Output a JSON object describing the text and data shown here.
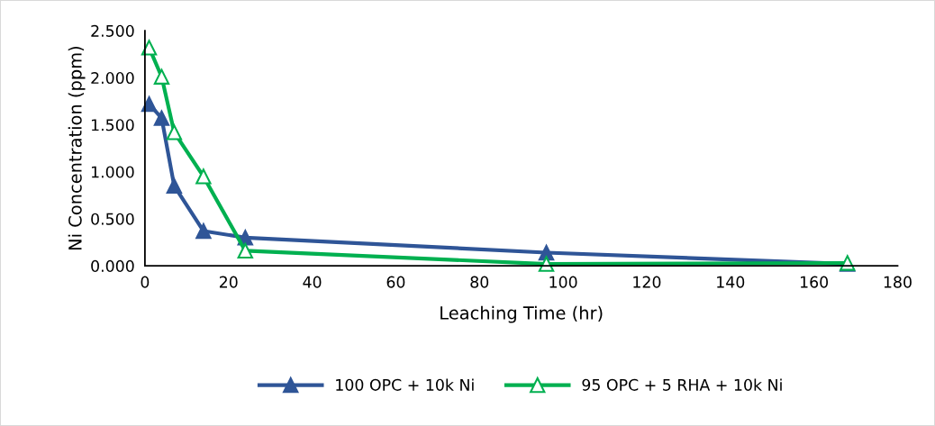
{
  "chart_data": {
    "type": "line",
    "xlabel": "Leaching Time (hr)",
    "ylabel": "Ni Concentration (ppm)",
    "xlim": [
      0,
      180
    ],
    "xticks": [
      0,
      20,
      40,
      60,
      80,
      100,
      120,
      140,
      160,
      180
    ],
    "ylim": [
      0,
      2.5
    ],
    "yticks": [
      {
        "value": 0,
        "label": "0.000"
      },
      {
        "value": 0.5,
        "label": "0.500"
      },
      {
        "value": 1.0,
        "label": "1.000"
      },
      {
        "value": 1.5,
        "label": "1.500"
      },
      {
        "value": 2.0,
        "label": "2.000"
      },
      {
        "value": 2.5,
        "label": "2.500"
      }
    ],
    "grid": false,
    "legend": "bottom",
    "line_style": "solid",
    "series": [
      {
        "name": "100 OPC + 10k Ni",
        "color": "#2f5597",
        "marker": "triangle",
        "x": [
          1,
          4,
          7,
          14,
          24,
          96,
          168
        ],
        "values": [
          1.72,
          1.57,
          0.85,
          0.37,
          0.3,
          0.14,
          0.02
        ]
      },
      {
        "name": "95 OPC + 5 RHA + 10k Ni",
        "color": "#00b050",
        "marker": "triangle",
        "x": [
          1,
          4,
          7,
          14,
          24,
          96,
          168
        ],
        "values": [
          2.32,
          2.01,
          1.42,
          0.95,
          0.16,
          0.02,
          0.03
        ]
      }
    ]
  }
}
